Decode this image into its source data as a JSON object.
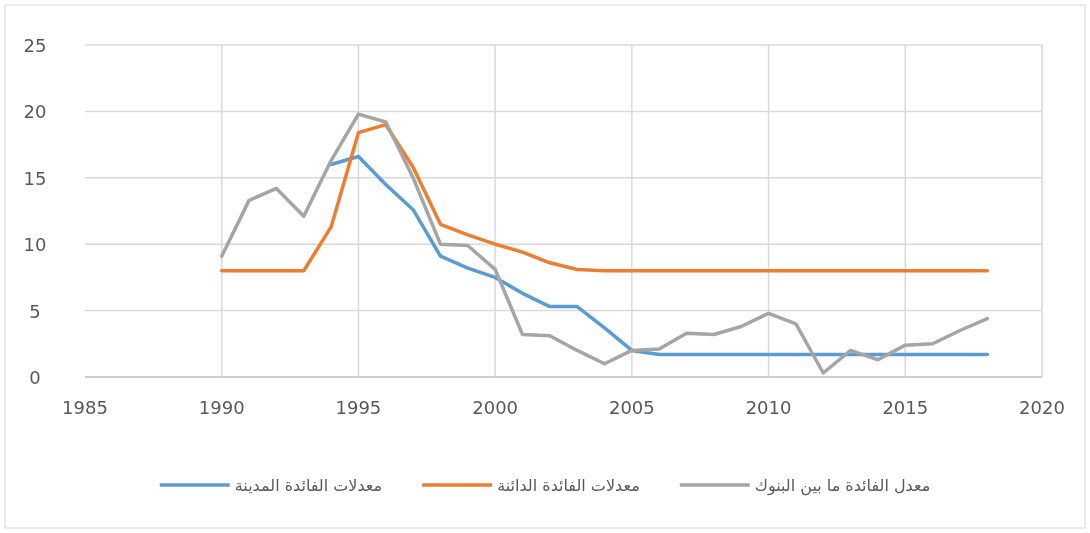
{
  "chart_data": {
    "type": "line",
    "x": [
      1990,
      1991,
      1992,
      1993,
      1994,
      1995,
      1996,
      1997,
      1998,
      1999,
      2000,
      2001,
      2002,
      2003,
      2004,
      2005,
      2006,
      2007,
      2008,
      2009,
      2010,
      2011,
      2012,
      2013,
      2014,
      2015,
      2016,
      2017,
      2018
    ],
    "xlim": [
      1985,
      2020
    ],
    "xticks": [
      1985,
      1990,
      1995,
      2000,
      2005,
      2010,
      2015,
      2020
    ],
    "ylim": [
      0,
      25
    ],
    "yticks": [
      0,
      5,
      10,
      15,
      20,
      25
    ],
    "grid": true,
    "legend": "bottom",
    "marker": "none",
    "line_style": "solid",
    "series": [
      {
        "name": "معدلات الفائدة المدينة",
        "color": "#5b9bd5",
        "values": [
          null,
          null,
          null,
          null,
          16,
          16.6,
          14.5,
          12.6,
          9.1,
          8.2,
          7.5,
          6.3,
          5.3,
          5.3,
          3.7,
          2,
          1.7,
          1.7,
          1.7,
          1.7,
          1.7,
          1.7,
          1.7,
          1.7,
          1.7,
          1.7,
          1.7,
          1.7,
          1.7
        ]
      },
      {
        "name": "معدلات الفائدة الدائنة",
        "color": "#ed7d31",
        "values": [
          8,
          8,
          8,
          8,
          11.3,
          18.4,
          19,
          15.8,
          11.5,
          10.7,
          10,
          9.4,
          8.6,
          8.1,
          8,
          8,
          8,
          8,
          8,
          8,
          8,
          8,
          8,
          8,
          8,
          8,
          8,
          8,
          8
        ]
      },
      {
        "name": "معدل الفائدة ما بين البنوك",
        "color": "#a5a5a5",
        "values": [
          9.1,
          13.3,
          14.2,
          12.1,
          16.3,
          19.8,
          19.2,
          15,
          10,
          9.9,
          8.1,
          3.2,
          3.1,
          2,
          1,
          2,
          2.1,
          3.3,
          3.2,
          3.8,
          4.8,
          4,
          0.3,
          2,
          1.3,
          2.4,
          2.5,
          3.5,
          4.4
        ]
      }
    ]
  }
}
